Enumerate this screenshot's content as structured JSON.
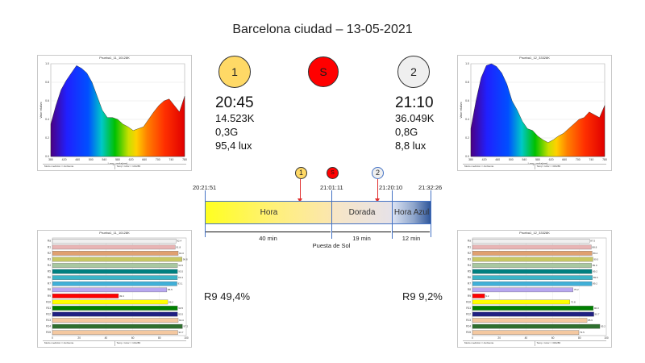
{
  "title": "Barcelona ciudad – 13-05-2021",
  "left": {
    "circle": "1",
    "time": "20:45",
    "cct": "14.523K",
    "duv": "0,3G",
    "lux": "95,4 lux",
    "r9": "R9 49,4%",
    "spectrum_title": "Prueba1_11_10128K",
    "bars_title": "Prueba1_11_10128K"
  },
  "middle": {
    "circle": "S"
  },
  "right": {
    "circle": "2",
    "time": "21:10",
    "cct": "36.049K",
    "duv": "0,8G",
    "lux": "8,8 lux",
    "r9": "R9 9,2%",
    "spectrum_title": "Prueba1_12_33328K",
    "bars_title": "Prueba1_12_33328K"
  },
  "timeline": {
    "t_start": "20:21:51",
    "t_sunset": "21:01:11",
    "t_dorada_end": "21:20:10",
    "t_end": "21:32:26",
    "seg_hora": "Hora",
    "seg_dorada": "Dorada",
    "seg_azul": "Hora Azul",
    "dur_hora": "40 min",
    "dur_dorada": "19 min",
    "dur_azul": "12 min",
    "sunset_label": "Puesta de Sol",
    "marker1": "1",
    "markerS": "S",
    "marker2": "2"
  },
  "panel_footer": {
    "f1": "Modo medición = Ambiente",
    "f2": "Temp. Color = 10128K"
  },
  "panel_footer_right": {
    "f1": "Modo medición = Ambiente",
    "f2": "Temp. Color = 33328K"
  },
  "bars_left": {
    "labels": [
      "Ra",
      "R1",
      "R2",
      "R3",
      "R4",
      "R5",
      "R6",
      "R7",
      "R8",
      "R9",
      "R10",
      "R11",
      "R12",
      "R13",
      "R14",
      "R15"
    ],
    "values": [
      92.4,
      91.8,
      94.0,
      96.8,
      93.5,
      93.5,
      93.4,
      93.1,
      85.5,
      49.4,
      86.2,
      93.5,
      93.5,
      94.0,
      97.2,
      93.7
    ],
    "colors": [
      "#f0f0f0",
      "#e8b4b4",
      "#e0a070",
      "#c8c864",
      "#a8c8a0",
      "#008080",
      "#3ab4c8",
      "#40b0d8",
      "#b8a8f0",
      "#ff0000",
      "#ffff00",
      "#008000",
      "#202080",
      "#f4c8a0",
      "#2f6f2f",
      "#f4c8a0"
    ],
    "x_ticks": [
      "0",
      "20",
      "40",
      "60",
      "80",
      "100"
    ]
  },
  "bars_right": {
    "labels": [
      "Ra",
      "R1",
      "R2",
      "R3",
      "R4",
      "R5",
      "R6",
      "R7",
      "R8",
      "R9",
      "R10",
      "R11",
      "R12",
      "R13",
      "R14",
      "R15"
    ],
    "values": [
      87.5,
      88.8,
      89.4,
      90.0,
      89.0,
      89.2,
      89.6,
      89.2,
      75.2,
      9.2,
      72.8,
      90.3,
      90.7,
      85.6,
      95.2,
      79.5
    ],
    "colors": [
      "#f0f0f0",
      "#e8b4b4",
      "#e0a070",
      "#c8c864",
      "#a8c8a0",
      "#008080",
      "#3ab4c8",
      "#40b0d8",
      "#b8a8f0",
      "#ff0000",
      "#ffff00",
      "#008000",
      "#202080",
      "#f4c8a0",
      "#2f6f2f",
      "#f4c8a0"
    ],
    "x_ticks": [
      "0",
      "20",
      "40",
      "60",
      "80",
      "100"
    ]
  },
  "spectrum": {
    "x_ticks": [
      "380",
      "420",
      "460",
      "500",
      "540",
      "580",
      "620",
      "660",
      "700",
      "740",
      "780"
    ],
    "y_ticks": [
      "0.0",
      "0.2",
      "0.4",
      "0.6",
      "0.8",
      "1.0"
    ],
    "xlabel": "Long. onda(nm)",
    "ylabel": "Valor relativo",
    "left_values": [
      0.35,
      0.55,
      0.72,
      0.82,
      0.9,
      0.98,
      0.95,
      0.9,
      0.8,
      0.65,
      0.5,
      0.42,
      0.42,
      0.4,
      0.35,
      0.32,
      0.28,
      0.3,
      0.32,
      0.4,
      0.48,
      0.55,
      0.6,
      0.62,
      0.55,
      0.48,
      0.65
    ],
    "right_values": [
      0.3,
      0.6,
      0.85,
      0.98,
      1.0,
      0.97,
      0.9,
      0.78,
      0.6,
      0.5,
      0.38,
      0.3,
      0.28,
      0.22,
      0.18,
      0.15,
      0.18,
      0.22,
      0.25,
      0.3,
      0.35,
      0.4,
      0.42,
      0.48,
      0.45,
      0.42,
      0.55
    ]
  }
}
